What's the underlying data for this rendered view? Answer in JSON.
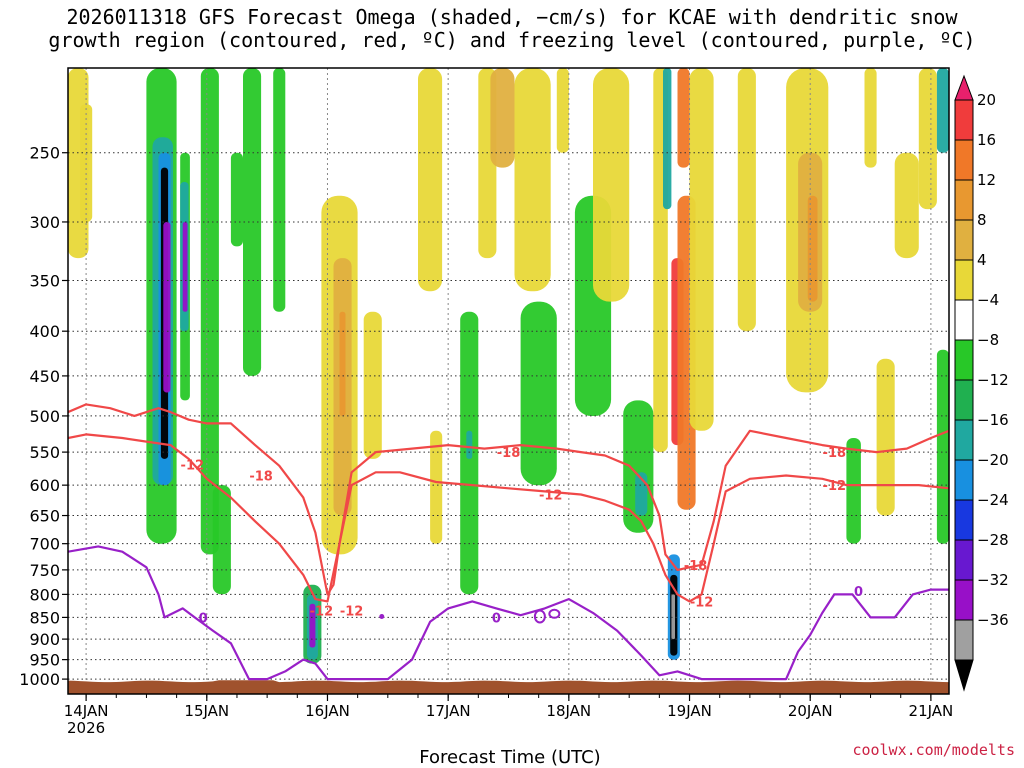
{
  "title": {
    "line1": "2026011318 GFS Forecast Omega (shaded, −cm/s) for KCAE with dendritic snow",
    "line2": "growth region (contoured, red, ºC) and freezing level (contoured, purple, ºC)"
  },
  "credit": "coolwx.com/modelts",
  "chart_data": {
    "type": "heatmap",
    "xlabel": "Forecast Time (UTC)",
    "ylabel": "",
    "x_range_days_from_14jan00z": [
      -0.15,
      7.15
    ],
    "ylim": [
      1040,
      200
    ],
    "y_ticks": [
      "250",
      "300",
      "350",
      "400",
      "450",
      "500",
      "550",
      "600",
      "650",
      "700",
      "750",
      "800",
      "850",
      "900",
      "950",
      "1000"
    ],
    "x_ticks": [
      {
        "day": 0,
        "label": "14JAN",
        "sublabel": "2026"
      },
      {
        "day": 1,
        "label": "15JAN"
      },
      {
        "day": 2,
        "label": "16JAN"
      },
      {
        "day": 3,
        "label": "17JAN"
      },
      {
        "day": 4,
        "label": "18JAN"
      },
      {
        "day": 5,
        "label": "19JAN"
      },
      {
        "day": 6,
        "label": "20JAN"
      },
      {
        "day": 7,
        "label": "21JAN"
      }
    ],
    "colorbar": {
      "labels": [
        "20",
        "16",
        "12",
        "8",
        "4",
        "−4",
        "−8",
        "−12",
        "−16",
        "−20",
        "−24",
        "−28",
        "−32",
        "−36"
      ],
      "colors": [
        "#e8206c",
        "#f03c3c",
        "#f07828",
        "#e89830",
        "#e0b040",
        "#e8d838",
        "#ffffff",
        "#28c828",
        "#20b050",
        "#20a8a0",
        "#1890e0",
        "#1838e0",
        "#6818d0",
        "#9810c8",
        "#a0a0a0",
        "#000000"
      ]
    },
    "series": [
      {
        "name": "-18 C isotherm (top)",
        "color": "#f04848",
        "label": "-18",
        "points": [
          [
            -0.15,
            495
          ],
          [
            0,
            485
          ],
          [
            0.2,
            490
          ],
          [
            0.4,
            500
          ],
          [
            0.6,
            490
          ],
          [
            0.7,
            495
          ],
          [
            0.85,
            505
          ],
          [
            1.0,
            510
          ],
          [
            1.2,
            510
          ],
          [
            1.4,
            540
          ],
          [
            1.6,
            570
          ],
          [
            1.8,
            620
          ],
          [
            1.9,
            680
          ],
          [
            2.0,
            800
          ],
          [
            2.05,
            780
          ],
          [
            2.1,
            700
          ],
          [
            2.2,
            580
          ],
          [
            2.4,
            550
          ],
          [
            2.7,
            545
          ],
          [
            3.0,
            540
          ],
          [
            3.3,
            545
          ],
          [
            3.6,
            540
          ],
          [
            3.9,
            545
          ],
          [
            4.1,
            550
          ],
          [
            4.3,
            555
          ],
          [
            4.5,
            570
          ],
          [
            4.65,
            600
          ],
          [
            4.75,
            650
          ],
          [
            4.8,
            720
          ],
          [
            4.9,
            750
          ],
          [
            5.0,
            745
          ],
          [
            5.1,
            740
          ],
          [
            5.2,
            660
          ],
          [
            5.3,
            570
          ],
          [
            5.5,
            520
          ],
          [
            5.8,
            530
          ],
          [
            6.1,
            540
          ],
          [
            6.3,
            545
          ],
          [
            6.55,
            550
          ],
          [
            6.8,
            545
          ],
          [
            7.0,
            530
          ],
          [
            7.15,
            520
          ]
        ]
      },
      {
        "name": "-12 C isotherm",
        "color": "#f04848",
        "label": "-12",
        "points": [
          [
            -0.15,
            530
          ],
          [
            0,
            525
          ],
          [
            0.3,
            530
          ],
          [
            0.5,
            535
          ],
          [
            0.7,
            540
          ],
          [
            0.85,
            560
          ],
          [
            1.0,
            590
          ],
          [
            1.2,
            620
          ],
          [
            1.4,
            660
          ],
          [
            1.6,
            700
          ],
          [
            1.8,
            760
          ],
          [
            1.9,
            810
          ],
          [
            2.0,
            815
          ],
          [
            2.1,
            700
          ],
          [
            2.2,
            600
          ],
          [
            2.4,
            580
          ],
          [
            2.6,
            580
          ],
          [
            2.9,
            595
          ],
          [
            3.2,
            600
          ],
          [
            3.5,
            605
          ],
          [
            3.8,
            610
          ],
          [
            4.1,
            615
          ],
          [
            4.3,
            625
          ],
          [
            4.5,
            640
          ],
          [
            4.6,
            660
          ],
          [
            4.7,
            700
          ],
          [
            4.8,
            760
          ],
          [
            4.9,
            800
          ],
          [
            5.0,
            815
          ],
          [
            5.1,
            800
          ],
          [
            5.2,
            700
          ],
          [
            5.3,
            610
          ],
          [
            5.5,
            590
          ],
          [
            5.8,
            585
          ],
          [
            6.1,
            590
          ],
          [
            6.3,
            600
          ],
          [
            6.6,
            600
          ],
          [
            6.9,
            600
          ],
          [
            7.15,
            605
          ]
        ]
      },
      {
        "name": "0 C freezing level",
        "color": "#9820c8",
        "label": "0",
        "points": [
          [
            -0.15,
            715
          ],
          [
            0.1,
            705
          ],
          [
            0.3,
            715
          ],
          [
            0.5,
            745
          ],
          [
            0.6,
            800
          ],
          [
            0.65,
            850
          ],
          [
            0.8,
            830
          ],
          [
            0.9,
            850
          ],
          [
            1.05,
            880
          ],
          [
            1.2,
            910
          ],
          [
            1.35,
            1000
          ],
          [
            1.5,
            1000
          ],
          [
            1.65,
            980
          ],
          [
            1.8,
            950
          ],
          [
            1.9,
            960
          ],
          [
            2.0,
            1000
          ],
          [
            2.5,
            1000
          ],
          [
            2.7,
            950
          ],
          [
            2.85,
            860
          ],
          [
            3.0,
            830
          ],
          [
            3.2,
            815
          ],
          [
            3.4,
            830
          ],
          [
            3.6,
            845
          ],
          [
            3.8,
            830
          ],
          [
            4.0,
            810
          ],
          [
            4.2,
            840
          ],
          [
            4.4,
            880
          ],
          [
            4.6,
            940
          ],
          [
            4.75,
            990
          ],
          [
            4.9,
            980
          ],
          [
            5.1,
            1000
          ],
          [
            5.8,
            1000
          ],
          [
            5.9,
            930
          ],
          [
            6.0,
            890
          ],
          [
            6.1,
            840
          ],
          [
            6.2,
            800
          ],
          [
            6.35,
            800
          ],
          [
            6.5,
            850
          ],
          [
            6.7,
            850
          ],
          [
            6.85,
            800
          ],
          [
            7.0,
            790
          ],
          [
            7.15,
            790
          ]
        ]
      }
    ],
    "annotations": [
      "-12",
      "-18",
      "-18",
      "-12",
      "-18",
      "-12",
      "0",
      "0",
      "-18",
      "-12",
      "-18",
      "-12",
      "0"
    ]
  }
}
